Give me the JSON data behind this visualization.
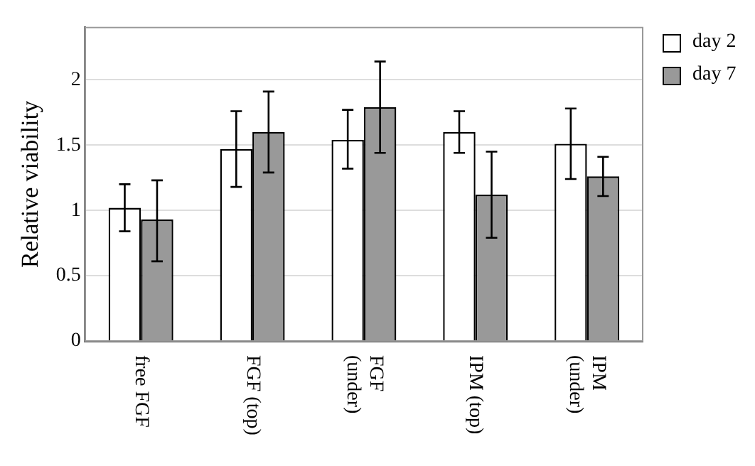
{
  "chart_data": {
    "type": "bar",
    "ylabel": "Relative viability",
    "categories": [
      "free FGF",
      "FGF (top)",
      "FGF (under)",
      "IPM (top)",
      "IPM (under)"
    ],
    "series": [
      {
        "name": "day 2",
        "color": "#ffffff",
        "values": [
          1.02,
          1.47,
          1.54,
          1.6,
          1.51
        ],
        "errors": [
          [
            0.84,
            1.2
          ],
          [
            1.18,
            1.76
          ],
          [
            1.32,
            1.77
          ],
          [
            1.44,
            1.76
          ],
          [
            1.24,
            1.78
          ]
        ]
      },
      {
        "name": "day 7",
        "color": "#999999",
        "values": [
          0.93,
          1.6,
          1.79,
          1.12,
          1.26
        ],
        "errors": [
          [
            0.61,
            1.23
          ],
          [
            1.29,
            1.91
          ],
          [
            1.44,
            2.14
          ],
          [
            0.79,
            1.45
          ],
          [
            1.11,
            1.41
          ]
        ]
      }
    ],
    "ylim": [
      0,
      2.4
    ],
    "yticks": [
      0,
      0.5,
      1,
      1.5,
      2
    ],
    "grid": "y",
    "legend": "right"
  }
}
